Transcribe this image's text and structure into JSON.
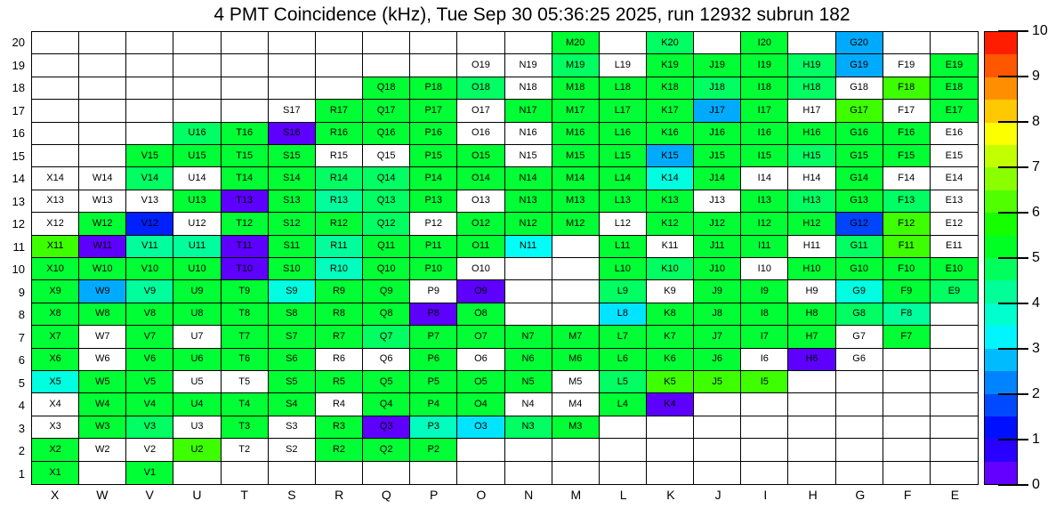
{
  "chart_data": {
    "type": "heatmap",
    "title": "4 PMT Coincidence (kHz), Tue Sep 30 05:36:25 2025, run 12932 subrun 182",
    "unit": "kHz",
    "columns": [
      "X",
      "W",
      "V",
      "U",
      "T",
      "S",
      "R",
      "Q",
      "P",
      "O",
      "N",
      "M",
      "L",
      "K",
      "J",
      "I",
      "H",
      "G",
      "F",
      "E"
    ],
    "rows": [
      20,
      19,
      18,
      17,
      16,
      15,
      14,
      13,
      12,
      11,
      10,
      9,
      8,
      7,
      6,
      5,
      4,
      3,
      2,
      1
    ],
    "value_range": [
      0,
      10
    ],
    "colorbar_ticks": [
      0,
      1,
      2,
      3,
      4,
      5,
      6,
      7,
      8,
      9,
      10
    ],
    "legend_position": "right",
    "note_empty_cells": "cells absent from 'cells' map are blank; value null means labeled cell drawn white (no rate)",
    "cells": {
      "M20": 5.1,
      "K20": 4.7,
      "I20": 5.1,
      "G20": 2.6,
      "O19": null,
      "N19": null,
      "M19": 4.7,
      "L19": null,
      "K19": 5.1,
      "J19": 5.1,
      "I19": 5.1,
      "H19": 4.7,
      "G19": 2.6,
      "F19": null,
      "E19": 5.1,
      "Q18": 5.1,
      "P18": 5.1,
      "O18": 4.7,
      "N18": null,
      "M18": 5.1,
      "L18": 5.1,
      "K18": 5.1,
      "J18": 4.7,
      "I18": 5.1,
      "H18": 4.7,
      "G18": null,
      "F18": 6.1,
      "E18": 5.1,
      "S17": null,
      "R17": 5.1,
      "Q17": 5.1,
      "P17": 5.1,
      "O17": null,
      "N17": 5.1,
      "M17": 5.1,
      "L17": 5.1,
      "K17": 5.1,
      "J17": 2.6,
      "I17": 5.1,
      "H17": null,
      "G17": 6.1,
      "F17": null,
      "E17": 5.1,
      "U16": 4.7,
      "T16": 5.1,
      "S16": 0.3,
      "R16": 5.1,
      "Q16": 5.1,
      "P16": 5.1,
      "O16": null,
      "N16": null,
      "M16": 5.1,
      "L16": 5.1,
      "K16": 5.1,
      "J16": 5.1,
      "I16": 5.1,
      "H16": 5.1,
      "G16": 5.1,
      "F16": 5.1,
      "E16": null,
      "V15": 5.1,
      "U15": 5.1,
      "T15": 5.1,
      "S15": 5.1,
      "R15": null,
      "Q15": null,
      "P15": 5.1,
      "O15": 5.1,
      "N15": null,
      "M15": 5.1,
      "L15": 5.1,
      "K15": 2.6,
      "J15": 5.1,
      "I15": 5.1,
      "H15": 4.7,
      "G15": 5.1,
      "F15": 5.1,
      "E15": null,
      "X14": null,
      "W14": null,
      "V14": 4.7,
      "U14": null,
      "T14": 5.1,
      "S14": 5.1,
      "R14": 4.7,
      "Q14": 4.7,
      "P14": 5.1,
      "O14": 5.1,
      "N14": 5.1,
      "M14": 5.1,
      "L14": 5.1,
      "K14": 3.6,
      "J14": 5.1,
      "I14": null,
      "H14": null,
      "G14": 5.1,
      "F14": null,
      "E14": null,
      "X13": null,
      "W13": null,
      "V13": null,
      "U13": 5.1,
      "T13": 0.3,
      "S13": 5.1,
      "R13": 4.2,
      "Q13": 4.7,
      "P13": 5.1,
      "O13": null,
      "N13": 5.1,
      "M13": 5.1,
      "L13": 5.1,
      "K13": 5.1,
      "J13": null,
      "I13": 5.1,
      "H13": 4.7,
      "G13": 5.1,
      "F13": 4.7,
      "E13": null,
      "X12": null,
      "W12": 5.1,
      "V12": 1.4,
      "U12": null,
      "T12": 5.1,
      "S12": 5.1,
      "R12": 5.1,
      "Q12": 4.7,
      "P12": null,
      "O12": 5.1,
      "N12": 5.1,
      "M12": 5.1,
      "L12": null,
      "K12": 5.1,
      "J12": 5.1,
      "I12": 5.1,
      "H12": 5.1,
      "G12": 1.7,
      "F12": 6.1,
      "E12": null,
      "X11": 6.1,
      "W11": 0.3,
      "V11": 4.2,
      "U11": 4.2,
      "T11": 0.3,
      "S11": 5.1,
      "R11": 4.2,
      "Q11": 5.1,
      "P11": 5.1,
      "O11": 5.1,
      "N11": 3.4,
      "L11": 5.1,
      "K11": null,
      "J11": 5.1,
      "I11": 5.1,
      "H11": null,
      "G11": 4.7,
      "F11": 6.1,
      "E11": null,
      "X10": 5.1,
      "W10": 5.1,
      "V10": 5.1,
      "U10": 5.1,
      "T10": 0.3,
      "S10": 5.1,
      "R10": 3.9,
      "Q10": 5.1,
      "P10": 5.1,
      "O10": null,
      "L10": 5.1,
      "K10": 4.7,
      "J10": 5.1,
      "I10": null,
      "H10": 5.1,
      "G10": 5.1,
      "F10": 5.1,
      "E10": 5.1,
      "X9": 5.1,
      "W9": 2.6,
      "V9": 4.2,
      "U9": 5.1,
      "T9": 5.1,
      "S9": 3.6,
      "R9": 5.1,
      "Q9": 5.1,
      "P9": null,
      "O9": 0.3,
      "L9": 4.7,
      "K9": null,
      "J9": 5.1,
      "I9": 5.1,
      "H9": null,
      "G9": 3.6,
      "F9": 5.1,
      "E9": 4.7,
      "X8": 5.1,
      "W8": 5.1,
      "V8": 5.1,
      "U8": 5.1,
      "T8": 5.1,
      "S8": 5.1,
      "R8": 5.1,
      "Q8": 5.1,
      "P8": 0.3,
      "O8": 5.1,
      "L8": 3.1,
      "K8": 5.1,
      "J8": 5.1,
      "I8": 5.1,
      "H8": 5.1,
      "G8": 4.7,
      "F8": 4.2,
      "X7": 5.1,
      "W7": null,
      "V7": 5.1,
      "U7": null,
      "T7": 5.1,
      "S7": 5.1,
      "R7": 5.1,
      "Q7": 4.7,
      "P7": 5.1,
      "O7": 5.1,
      "N7": 5.1,
      "M7": 5.1,
      "L7": 5.1,
      "K7": 5.1,
      "J7": 5.1,
      "I7": 5.1,
      "H7": 5.1,
      "G7": null,
      "F7": 5.1,
      "X6": 5.1,
      "W6": null,
      "V6": 5.1,
      "U6": 5.1,
      "T6": 5.1,
      "S6": 5.1,
      "R6": null,
      "Q6": null,
      "P6": 5.1,
      "O6": null,
      "N6": 5.1,
      "M6": 5.1,
      "L6": 5.1,
      "K6": 5.1,
      "J6": 5.1,
      "I6": null,
      "H6": 0.3,
      "G6": null,
      "X5": 3.6,
      "W5": 5.1,
      "V5": 5.1,
      "U5": null,
      "T5": null,
      "S5": 5.1,
      "R5": 5.1,
      "Q5": 5.1,
      "P5": 5.1,
      "O5": 5.1,
      "N5": 5.1,
      "M5": null,
      "L5": 4.7,
      "K5": 6.1,
      "J5": 6.1,
      "I5": 6.1,
      "X4": null,
      "W4": 5.1,
      "V4": 5.1,
      "U4": 5.1,
      "T4": 5.1,
      "S4": 5.1,
      "R4": null,
      "Q4": 5.1,
      "P4": 5.1,
      "O4": 5.1,
      "N4": null,
      "M4": null,
      "L4": 5.1,
      "K4": 0.3,
      "X3": null,
      "W3": 5.1,
      "V3": 4.7,
      "U3": null,
      "T3": 5.1,
      "S3": null,
      "R3": 5.1,
      "Q3": 0.3,
      "P3": 3.9,
      "O3": 3.1,
      "N3": 4.7,
      "M3": 5.1,
      "X2": 5.1,
      "W2": null,
      "V2": null,
      "U2": 6.1,
      "T2": null,
      "S2": null,
      "R2": 5.1,
      "Q2": 5.1,
      "P2": 5.1,
      "X1": 5.1,
      "V1": 5.1
    }
  }
}
